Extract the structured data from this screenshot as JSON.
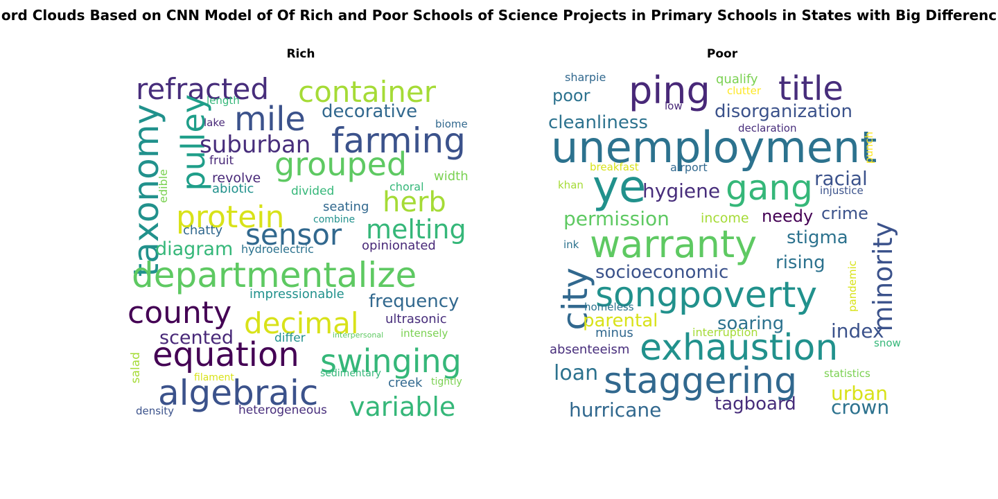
{
  "title": "ord Clouds Based on CNN Model of Of Rich and Poor Schools of Science Projects in Primary Schools in States with Big Differenc",
  "panels": [
    {
      "subtitle": "Rich",
      "words": [
        {
          "text": "refracted",
          "color": "#472d7b"
        },
        {
          "text": "container",
          "color": "#a5db36"
        },
        {
          "text": "mile",
          "color": "#3b528b"
        },
        {
          "text": "decorative",
          "color": "#31688e"
        },
        {
          "text": "farming",
          "color": "#3b528b"
        },
        {
          "text": "taxonomy",
          "color": "#21918c"
        },
        {
          "text": "pulley",
          "color": "#1f9e89"
        },
        {
          "text": "suburban",
          "color": "#472d7b"
        },
        {
          "text": "grouped",
          "color": "#5ec962"
        },
        {
          "text": "herb",
          "color": "#a5db36"
        },
        {
          "text": "protein",
          "color": "#d8e219"
        },
        {
          "text": "sensor",
          "color": "#31688e"
        },
        {
          "text": "melting",
          "color": "#35b779"
        },
        {
          "text": "diagram",
          "color": "#35b779"
        },
        {
          "text": "departmentalize",
          "color": "#5ec962"
        },
        {
          "text": "county",
          "color": "#440154"
        },
        {
          "text": "decimal",
          "color": "#d8e219"
        },
        {
          "text": "frequency",
          "color": "#31688e"
        },
        {
          "text": "equation",
          "color": "#440154"
        },
        {
          "text": "swinging",
          "color": "#35b779"
        },
        {
          "text": "algebraic",
          "color": "#3b528b"
        },
        {
          "text": "variable",
          "color": "#35b779"
        },
        {
          "text": "scented",
          "color": "#482878"
        },
        {
          "text": "length",
          "color": "#35b779"
        },
        {
          "text": "lake",
          "color": "#482878"
        },
        {
          "text": "biome",
          "color": "#31688e"
        },
        {
          "text": "fruit",
          "color": "#482878"
        },
        {
          "text": "revolve",
          "color": "#482878"
        },
        {
          "text": "abiotic",
          "color": "#21918c"
        },
        {
          "text": "divided",
          "color": "#35b779"
        },
        {
          "text": "choral",
          "color": "#35b779"
        },
        {
          "text": "width",
          "color": "#7ad151"
        },
        {
          "text": "edible",
          "color": "#7ad151"
        },
        {
          "text": "seating",
          "color": "#31688e"
        },
        {
          "text": "combine",
          "color": "#21918c"
        },
        {
          "text": "chatty",
          "color": "#31688e"
        },
        {
          "text": "hydroelectric",
          "color": "#2c728e"
        },
        {
          "text": "opinionated",
          "color": "#482878"
        },
        {
          "text": "impressionable",
          "color": "#21918c"
        },
        {
          "text": "ultrasonic",
          "color": "#472d7b"
        },
        {
          "text": "differ",
          "color": "#21918c"
        },
        {
          "text": "interpersonal",
          "color": "#5ec962"
        },
        {
          "text": "intensely",
          "color": "#7ad151"
        },
        {
          "text": "salad",
          "color": "#a5db36"
        },
        {
          "text": "filament",
          "color": "#d8e219"
        },
        {
          "text": "sedimentary",
          "color": "#35b779"
        },
        {
          "text": "creek",
          "color": "#31688e"
        },
        {
          "text": "tightly",
          "color": "#7ad151"
        },
        {
          "text": "density",
          "color": "#3b528b"
        },
        {
          "text": "heterogeneous",
          "color": "#472d7b"
        }
      ]
    },
    {
      "subtitle": "Poor",
      "words": [
        {
          "text": "sharpie",
          "color": "#31688e"
        },
        {
          "text": "ping",
          "color": "#482878"
        },
        {
          "text": "qualify",
          "color": "#7ad151"
        },
        {
          "text": "clutter",
          "color": "#fde725"
        },
        {
          "text": "title",
          "color": "#472d7b"
        },
        {
          "text": "poor",
          "color": "#2c728e"
        },
        {
          "text": "low",
          "color": "#482878"
        },
        {
          "text": "disorganization",
          "color": "#3b528b"
        },
        {
          "text": "cleanliness",
          "color": "#2c728e"
        },
        {
          "text": "declaration",
          "color": "#472d7b"
        },
        {
          "text": "unemployment",
          "color": "#2c728e"
        },
        {
          "text": "punch",
          "color": "#fde725"
        },
        {
          "text": "breakfast",
          "color": "#d8e219"
        },
        {
          "text": "airport",
          "color": "#31688e"
        },
        {
          "text": "ye",
          "color": "#21918c"
        },
        {
          "text": "gang",
          "color": "#35b779"
        },
        {
          "text": "racial",
          "color": "#3b528b"
        },
        {
          "text": "khan",
          "color": "#a5db36"
        },
        {
          "text": "hygiene",
          "color": "#472d7b"
        },
        {
          "text": "injustice",
          "color": "#3b528b"
        },
        {
          "text": "permission",
          "color": "#5ec962"
        },
        {
          "text": "income",
          "color": "#a5db36"
        },
        {
          "text": "needy",
          "color": "#440154"
        },
        {
          "text": "crime",
          "color": "#3b528b"
        },
        {
          "text": "minority",
          "color": "#3b528b"
        },
        {
          "text": "ink",
          "color": "#2c728e"
        },
        {
          "text": "warranty",
          "color": "#5ec962"
        },
        {
          "text": "stigma",
          "color": "#2c728e"
        },
        {
          "text": "city",
          "color": "#31688e"
        },
        {
          "text": "socioeconomic",
          "color": "#3b528b"
        },
        {
          "text": "rising",
          "color": "#2c728e"
        },
        {
          "text": "pandemic",
          "color": "#d8e219"
        },
        {
          "text": "song",
          "color": "#21918c"
        },
        {
          "text": "poverty",
          "color": "#21918c"
        },
        {
          "text": "homeless",
          "color": "#2c728e"
        },
        {
          "text": "parental",
          "color": "#d8e219"
        },
        {
          "text": "soaring",
          "color": "#2c728e"
        },
        {
          "text": "minus",
          "color": "#31688e"
        },
        {
          "text": "interruption",
          "color": "#a5db36"
        },
        {
          "text": "index",
          "color": "#3b528b"
        },
        {
          "text": "snow",
          "color": "#35b779"
        },
        {
          "text": "absenteeism",
          "color": "#472d7b"
        },
        {
          "text": "exhaustion",
          "color": "#21918c"
        },
        {
          "text": "loan",
          "color": "#2c728e"
        },
        {
          "text": "staggering",
          "color": "#31688e"
        },
        {
          "text": "statistics",
          "color": "#7ad151"
        },
        {
          "text": "urban",
          "color": "#d8e219"
        },
        {
          "text": "crown",
          "color": "#2c728e"
        },
        {
          "text": "hurricane",
          "color": "#31688e"
        },
        {
          "text": "tagboard",
          "color": "#472d7b"
        }
      ]
    }
  ]
}
